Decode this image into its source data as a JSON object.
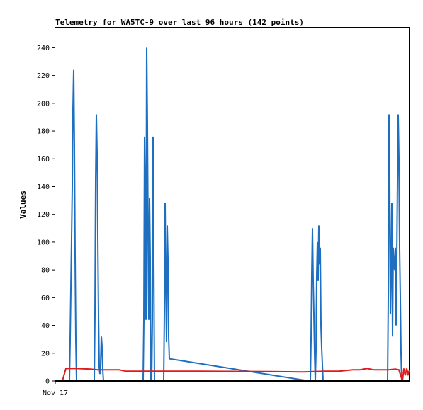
{
  "chart_data": {
    "type": "line",
    "title": "Telemetry for WA5TC-9 over last 96 hours (142 points)",
    "xlabel": "",
    "ylabel": "Values",
    "x_tick_labels": [
      "Nov 17"
    ],
    "xlim": [
      0,
      100
    ],
    "ylim": [
      0,
      255
    ],
    "y_ticks": [
      0,
      20,
      40,
      60,
      80,
      100,
      120,
      140,
      160,
      180,
      200,
      220,
      240
    ],
    "grid": false,
    "legend": "none",
    "series": [
      {
        "color": "#1e6fc0",
        "x": [
          2,
          4,
          4.2,
          4.5,
          4.8,
          5,
          5.2,
          5.4,
          5.6,
          5.8,
          6,
          6.2,
          11,
          11.2,
          11.4,
          11.6,
          11.8,
          12,
          12.2,
          12.4,
          12.6,
          12.8,
          13,
          13.2,
          13.4,
          13.6,
          13.8,
          14,
          14.2,
          24.8,
          25,
          25.2,
          25.4,
          25.6,
          25.8,
          26,
          26.2,
          26.4,
          26.6,
          26.8,
          27,
          27.2,
          27.4,
          27.6,
          27.8,
          28,
          28.2,
          30.6,
          30.8,
          31,
          31.2,
          31.4,
          31.6,
          31.8,
          32,
          32.2,
          71.6,
          72,
          72.2,
          72.4,
          72.6,
          72.8,
          73,
          73.2,
          73.4,
          73.6,
          73.8,
          74,
          74.2,
          74.4,
          74.6,
          74.8,
          75,
          75.2,
          75.4,
          75.6,
          75.8,
          76,
          76.2,
          76.4,
          76.6,
          76.8,
          77,
          77.2,
          93.6,
          93.8,
          94,
          94.2,
          94.4,
          94.6,
          94.8,
          95,
          95.2,
          95.4,
          95.6,
          95.8,
          96,
          96.2,
          96.4,
          96.6,
          96.8,
          97,
          97.2,
          97.4,
          97.6,
          97.8,
          98
        ],
        "values": [
          0,
          0,
          30,
          84,
          140,
          196,
          224,
          168,
          90,
          30,
          0,
          0,
          0,
          48,
          145,
          192,
          164,
          104,
          48,
          10,
          5,
          12,
          32,
          25,
          8,
          0,
          0,
          0,
          0,
          0,
          44,
          176,
          132,
          44,
          240,
          184,
          104,
          44,
          132,
          88,
          0,
          0,
          44,
          176,
          88,
          0,
          0,
          0,
          48,
          128,
          72,
          28,
          112,
          88,
          32,
          16,
          0,
          0,
          30,
          76,
          110,
          72,
          48,
          20,
          0,
          22,
          76,
          100,
          72,
          112,
          84,
          96,
          40,
          24,
          12,
          0,
          0,
          0,
          0,
          0,
          0,
          0,
          0,
          0,
          0,
          0,
          60,
          192,
          144,
          48,
          80,
          128,
          32,
          96,
          84,
          80,
          96,
          40,
          88,
          144,
          192,
          160,
          96,
          60,
          20,
          0,
          0
        ]
      },
      {
        "color": "#e01b1b",
        "x": [
          2,
          3,
          6,
          10,
          12,
          14,
          18,
          20,
          40,
          60,
          70,
          76,
          80,
          84,
          86,
          88,
          90,
          94,
          96,
          97,
          98,
          98.4,
          98.8,
          99.2,
          99.6,
          100
        ],
        "values": [
          0,
          9,
          9,
          8.5,
          8,
          8,
          8,
          7,
          7,
          6.8,
          6.5,
          7,
          7,
          8,
          8,
          9,
          8,
          8,
          8.5,
          8,
          0,
          9,
          4,
          9,
          5,
          8
        ]
      },
      {
        "color": "#000000",
        "x": [
          0,
          100
        ],
        "values": [
          0,
          0
        ]
      }
    ]
  }
}
